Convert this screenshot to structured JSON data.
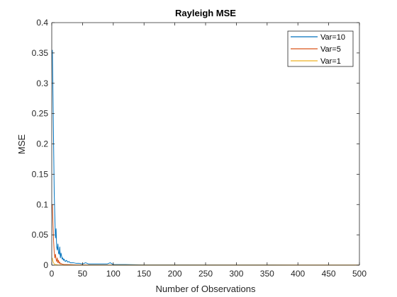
{
  "chart_data": {
    "type": "line",
    "title": "Rayleigh MSE",
    "xlabel": "Number of Observations",
    "ylabel": "MSE",
    "xlim": [
      0,
      500
    ],
    "ylim": [
      0,
      0.4
    ],
    "xticks": [
      0,
      50,
      100,
      150,
      200,
      250,
      300,
      350,
      400,
      450,
      500
    ],
    "yticks": [
      0,
      0.05,
      0.1,
      0.15,
      0.2,
      0.25,
      0.3,
      0.35,
      0.4
    ],
    "xtick_labels": [
      "0",
      "50",
      "100",
      "150",
      "200",
      "250",
      "300",
      "350",
      "400",
      "450",
      "500"
    ],
    "ytick_labels": [
      "0",
      "0.05",
      "0.1",
      "0.15",
      "0.2",
      "0.25",
      "0.3",
      "0.35",
      "0.4"
    ],
    "grid": false,
    "legend_position": "top-right",
    "series": [
      {
        "name": "Var=10",
        "color": "#0072BD",
        "x": [
          1,
          2,
          3,
          4,
          5,
          6,
          7,
          8,
          9,
          10,
          11,
          12,
          13,
          14,
          15,
          16,
          17,
          18,
          19,
          20,
          22,
          24,
          26,
          28,
          30,
          35,
          40,
          45,
          50,
          55,
          60,
          70,
          80,
          90,
          95,
          100,
          110,
          120,
          150,
          200,
          300,
          400,
          500
        ],
        "y": [
          0.355,
          0.28,
          0.2,
          0.12,
          0.08,
          0.045,
          0.06,
          0.03,
          0.025,
          0.035,
          0.02,
          0.018,
          0.03,
          0.012,
          0.02,
          0.015,
          0.01,
          0.012,
          0.008,
          0.01,
          0.006,
          0.008,
          0.005,
          0.006,
          0.004,
          0.004,
          0.003,
          0.003,
          0.002,
          0.004,
          0.002,
          0.002,
          0.002,
          0.002,
          0.004,
          0.001,
          0.001,
          0.001,
          0.0005,
          0.0005,
          0.0003,
          0.0002,
          0.0002
        ]
      },
      {
        "name": "Var=5",
        "color": "#D95319",
        "x": [
          1,
          2,
          3,
          4,
          5,
          6,
          7,
          8,
          9,
          10,
          11,
          12,
          13,
          14,
          15,
          16,
          18,
          20,
          25,
          30,
          40,
          50,
          100,
          200,
          300,
          400,
          500
        ],
        "y": [
          0.1,
          0.07,
          0.04,
          0.022,
          0.012,
          0.018,
          0.01,
          0.006,
          0.012,
          0.004,
          0.008,
          0.003,
          0.005,
          0.002,
          0.003,
          0.002,
          0.0015,
          0.001,
          0.001,
          0.0008,
          0.0005,
          0.0004,
          0.0002,
          0.0001,
          0.0001,
          0.0001,
          0.0001
        ]
      },
      {
        "name": "Var=1",
        "color": "#EDB120",
        "x": [
          1,
          2,
          3,
          4,
          5,
          6,
          8,
          10,
          15,
          20,
          50,
          100,
          200,
          300,
          400,
          500
        ],
        "y": [
          0.012,
          0.006,
          0.004,
          0.002,
          0.0015,
          0.001,
          0.0008,
          0.0005,
          0.0003,
          0.0002,
          0.0001,
          0.0001,
          0.0001,
          0.0001,
          0.0001,
          0.0001
        ]
      }
    ]
  }
}
